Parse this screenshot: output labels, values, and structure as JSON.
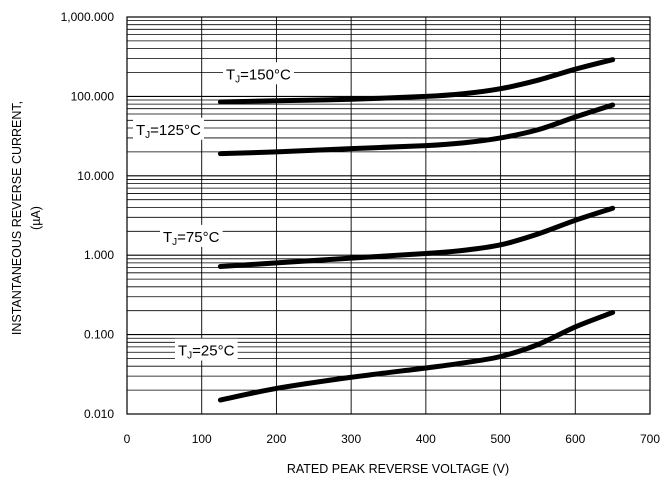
{
  "chart_data": {
    "type": "line",
    "xlabel": "RATED PEAK REVERSE VOLTAGE (V)",
    "ylabel_line1": "INSTANTANEOUS REVERSE CURRENT,",
    "ylabel_line2": "(µA)",
    "xlim": [
      0,
      700
    ],
    "ylim": [
      0.01,
      1000
    ],
    "yscale": "log",
    "x_ticks": [
      "0",
      "100",
      "200",
      "300",
      "400",
      "500",
      "600",
      "700"
    ],
    "y_ticks": [
      "1,000.000",
      "100.000",
      "10.000",
      "1.000",
      "0.100",
      "0.010"
    ],
    "grid": true,
    "series": [
      {
        "name": "TJ=150°C",
        "label_prefix": "T",
        "label_sub": "J",
        "label_suffix": "=150°C",
        "x": [
          125,
          200,
          300,
          400,
          450,
          500,
          550,
          600,
          650
        ],
        "y": [
          85,
          88,
          92,
          100,
          108,
          125,
          160,
          220,
          290
        ]
      },
      {
        "name": "TJ=125°C",
        "label_prefix": "T",
        "label_sub": "J",
        "label_suffix": "=125°C",
        "x": [
          125,
          200,
          300,
          400,
          450,
          500,
          550,
          600,
          650
        ],
        "y": [
          19,
          20,
          22,
          24,
          26,
          30,
          38,
          55,
          78
        ]
      },
      {
        "name": "TJ=75°C",
        "label_prefix": "T",
        "label_sub": "J",
        "label_suffix": "=75°C",
        "x": [
          125,
          200,
          300,
          400,
          450,
          500,
          550,
          600,
          650
        ],
        "y": [
          0.72,
          0.8,
          0.92,
          1.05,
          1.15,
          1.35,
          1.85,
          2.75,
          3.9
        ]
      },
      {
        "name": "TJ=25°C",
        "label_prefix": "T",
        "label_sub": "J",
        "label_suffix": "=25°C",
        "x": [
          125,
          200,
          300,
          400,
          450,
          500,
          550,
          600,
          650
        ],
        "y": [
          0.015,
          0.021,
          0.029,
          0.038,
          0.044,
          0.053,
          0.075,
          0.125,
          0.19
        ]
      }
    ]
  }
}
